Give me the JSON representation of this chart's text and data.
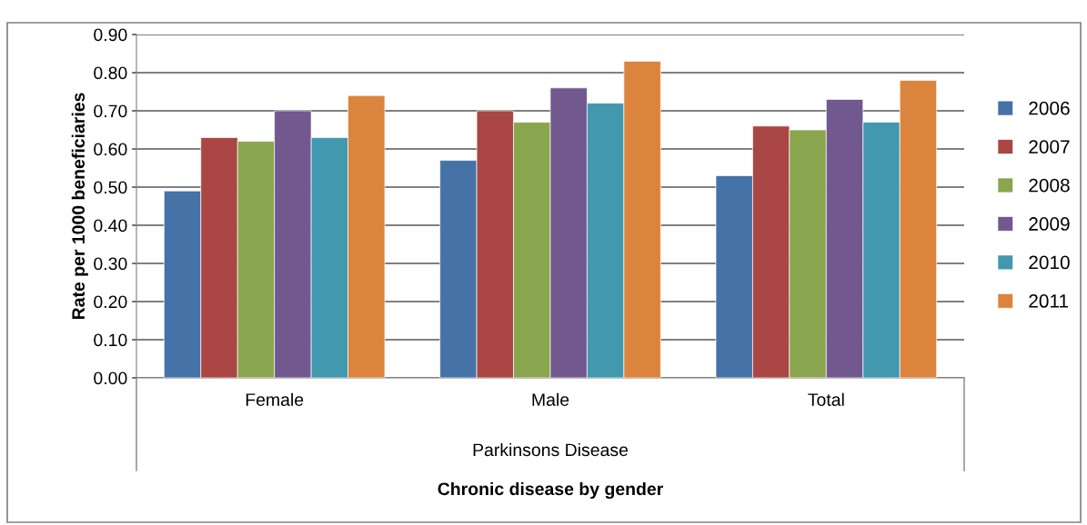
{
  "chart_data": {
    "type": "bar",
    "categories": [
      "Female",
      "Male",
      "Total"
    ],
    "series": [
      {
        "name": "2006",
        "color": "#4572a7",
        "values": [
          0.49,
          0.57,
          0.53
        ]
      },
      {
        "name": "2007",
        "color": "#aa4643",
        "values": [
          0.63,
          0.7,
          0.66
        ]
      },
      {
        "name": "2008",
        "color": "#89a54e",
        "values": [
          0.62,
          0.67,
          0.65
        ]
      },
      {
        "name": "2009",
        "color": "#71588f",
        "values": [
          0.7,
          0.76,
          0.73
        ]
      },
      {
        "name": "2010",
        "color": "#4198af",
        "values": [
          0.63,
          0.72,
          0.67
        ]
      },
      {
        "name": "2011",
        "color": "#db843d",
        "values": [
          0.74,
          0.83,
          0.78
        ]
      }
    ],
    "ylim": [
      0,
      0.9
    ],
    "yticks": [
      {
        "value": 0,
        "label": "0.00"
      },
      {
        "value": 0.1,
        "label": "0.10"
      },
      {
        "value": 0.2,
        "label": "0.20"
      },
      {
        "value": 0.3,
        "label": "0.30"
      },
      {
        "value": 0.4,
        "label": "0.40"
      },
      {
        "value": 0.5,
        "label": "0.50"
      },
      {
        "value": 0.6,
        "label": "0.60"
      },
      {
        "value": 0.7,
        "label": "0.70"
      },
      {
        "value": 0.8,
        "label": "0.80"
      },
      {
        "value": 0.9,
        "label": "0.90"
      }
    ],
    "ylabel": "Rate per 1000 beneficiaries",
    "xlabel": "Chronic disease by gender",
    "annotations": [
      "Parkinsons Disease"
    ],
    "grid": "y",
    "legend": "right"
  }
}
